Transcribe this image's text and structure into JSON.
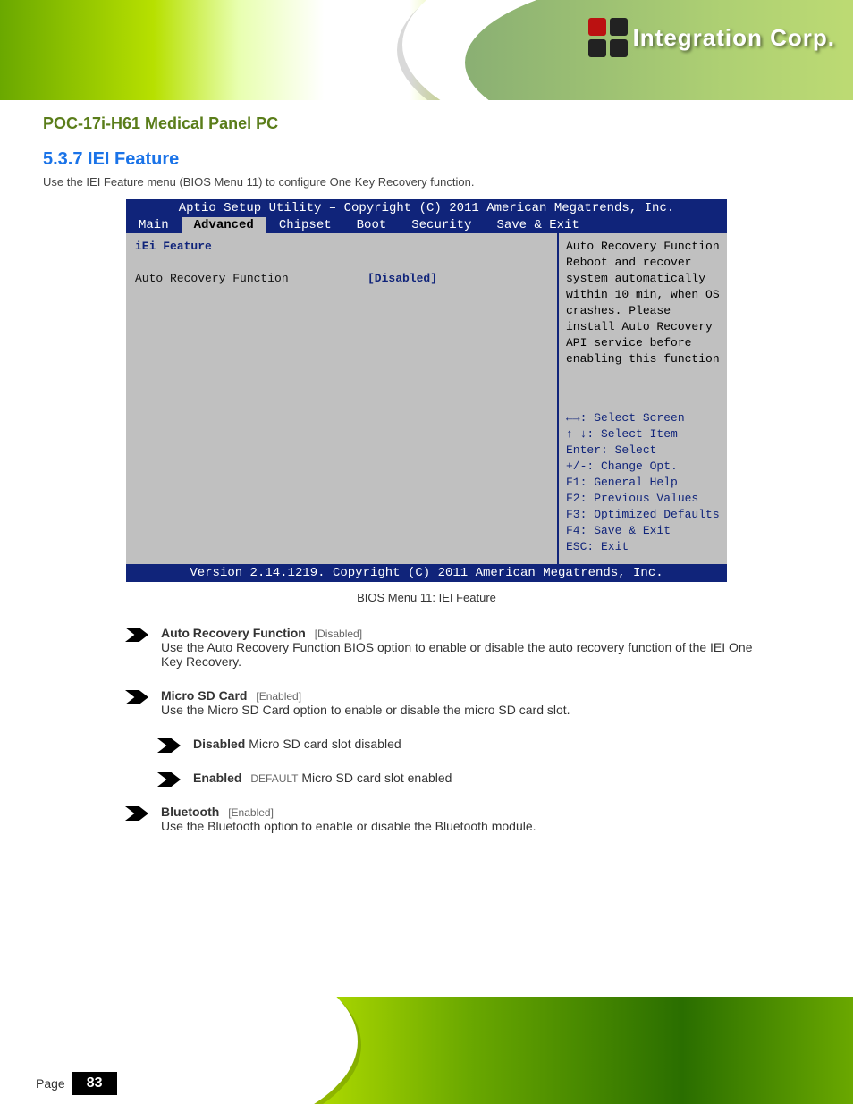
{
  "brand": {
    "company": "Integration Corp.",
    "logo_mark_colors": [
      "#b11",
      "#222",
      "#222",
      "#222"
    ]
  },
  "doc": {
    "product": "POC-17i-H61 Medical Panel PC",
    "section_heading": "5.3.7 IEI Feature",
    "section_text": "Use the IEI Feature menu (BIOS Menu 11) to configure One Key Recovery function.",
    "caption": "BIOS Menu 11: IEI Feature"
  },
  "bios": {
    "utility_title": "Aptio Setup Utility – Copyright (C) 2011 American Megatrends, Inc.",
    "tabs": [
      "Main",
      "Advanced",
      "Chipset",
      "Boot",
      "Security",
      "Save & Exit"
    ],
    "active_tab": "Advanced",
    "panel_heading": "iEi Feature",
    "rows": [
      {
        "k": "Auto Recovery Function",
        "v": "[Disabled]"
      }
    ],
    "right_desc": "Auto Recovery Function Reboot and recover system automatically within 10 min, when OS crashes. Please install Auto Recovery API service before enabling this function",
    "help": {
      "arrows": "←→",
      "updown": "↑ ↓",
      "lines": [
        ": Select Screen",
        ": Select Item",
        "Enter: Select",
        "+/-: Change Opt.",
        "F1: General Help",
        "F2: Previous Values",
        "F3: Optimized Defaults",
        "F4: Save & Exit",
        "ESC: Exit"
      ]
    },
    "footer": "Version 2.14.1219. Copyright (C) 2011 American Megatrends, Inc."
  },
  "explain": [
    {
      "level": 0,
      "name": "Auto Recovery Function",
      "def": "[Disabled]",
      "body": "Use the Auto Recovery Function BIOS option to enable or disable the auto recovery function of the IEI One Key Recovery."
    },
    {
      "level": 0,
      "name": "Micro SD Card",
      "def": "[Enabled]",
      "body": "Use the Micro SD Card option to enable or disable the micro SD card slot."
    },
    {
      "level": 1,
      "name": "Disabled",
      "def": "",
      "body": "Micro SD card slot disabled"
    },
    {
      "level": 1,
      "name": "Enabled",
      "def": "DEFAULT",
      "body": "Micro SD card slot enabled"
    },
    {
      "level": 0,
      "name": "Bluetooth",
      "def": "[Enabled]",
      "body": "Use the Bluetooth option to enable or disable the Bluetooth module."
    }
  ],
  "page": {
    "label": "Page",
    "number": "83"
  }
}
